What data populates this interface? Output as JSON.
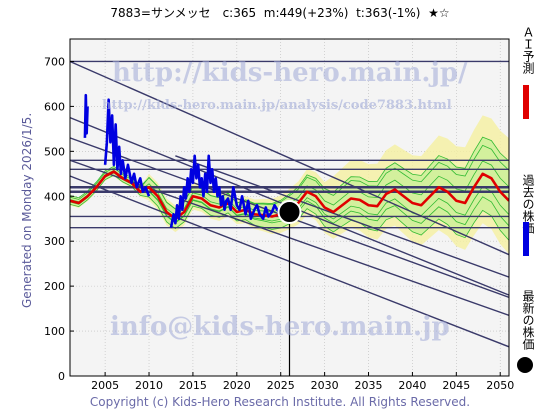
{
  "header": {
    "title": "7883=サンメッセ　c:365  m:449(+23%)  t:363(-1%)  ★☆"
  },
  "side_label": "Generated on Monday 2026/1/5.",
  "watermarks": {
    "url": "http://kids-hero.main.jp/",
    "analysis_url": "http://kids-hero.main.jp/analysis/code7883.html",
    "email": "info@kids-hero.main.jp"
  },
  "legend": {
    "ai": "ＡＩ予測",
    "past": "過去の株価",
    "latest": "最新の株価"
  },
  "footer": {
    "copyright": "Copyright (c) Kids-Hero Research Institute. All Rights Reserved."
  },
  "colors": {
    "ai_line": "#e00000",
    "past_line": "#0000e0",
    "band_fill": "#ccf09a",
    "band_line": "#33bb33",
    "yellow_fill": "#f5f0a0",
    "channel": "#3a3a6a",
    "grid": "#bbbbbb",
    "background": "#f4f4f4"
  },
  "chart_data": {
    "type": "line",
    "xlim": [
      2001,
      2051
    ],
    "ylim": [
      0,
      750
    ],
    "xticks": [
      2005,
      2010,
      2015,
      2020,
      2025,
      2030,
      2035,
      2040,
      2045,
      2050
    ],
    "yticks": [
      0,
      100,
      200,
      300,
      400,
      500,
      600,
      700
    ],
    "grid": true,
    "current": {
      "x": 2026.0,
      "y": 365
    },
    "horizontal_levels": [
      700,
      480,
      460,
      420,
      410,
      355,
      330
    ],
    "channels": [
      {
        "x": [
          2001,
          2051
        ],
        "y": [
          700,
          270
        ]
      },
      {
        "x": [
          2001,
          2051
        ],
        "y": [
          575,
          180
        ]
      },
      {
        "x": [
          2001,
          2051
        ],
        "y": [
          530,
          175
        ]
      },
      {
        "x": [
          2001,
          2051
        ],
        "y": [
          480,
          135
        ]
      },
      {
        "x": [
          2001,
          2051
        ],
        "y": [
          445,
          65
        ]
      },
      {
        "x": [
          2013,
          2051
        ],
        "y": [
          490,
          220
        ]
      }
    ],
    "series": [
      {
        "name": "過去の株価",
        "x": [
          2002.7,
          2002.8,
          2002.9,
          2003.0,
          2005.0,
          2005.2,
          2005.4,
          2005.6,
          2005.8,
          2006.0,
          2006.2,
          2006.4,
          2006.6,
          2006.8,
          2007.0,
          2007.3,
          2007.6,
          2008.0,
          2008.3,
          2008.6,
          2009.0,
          2009.3,
          2009.6,
          2010.0,
          2012.5,
          2012.8,
          2013.0,
          2013.2,
          2013.4,
          2013.6,
          2013.8,
          2014.0,
          2014.2,
          2014.4,
          2014.6,
          2014.8,
          2015.0,
          2015.2,
          2015.4,
          2015.6,
          2015.8,
          2016.0,
          2016.2,
          2016.4,
          2016.6,
          2016.8,
          2017.0,
          2017.2,
          2017.4,
          2017.6,
          2017.8,
          2018.0,
          2018.2,
          2018.4,
          2018.6,
          2018.8,
          2019.0,
          2019.3,
          2019.6,
          2020.0,
          2020.3,
          2020.6,
          2021.0,
          2021.3,
          2021.6,
          2022.0,
          2022.3,
          2022.6,
          2023.0,
          2023.3,
          2023.6,
          2024.0,
          2024.3,
          2024.6,
          2025.0,
          2025.3,
          2025.6,
          2026.0
        ],
        "y": [
          530,
          625,
          540,
          600,
          470,
          520,
          615,
          520,
          580,
          470,
          560,
          460,
          510,
          450,
          480,
          440,
          470,
          430,
          450,
          420,
          440,
          410,
          420,
          400,
          330,
          360,
          340,
          380,
          350,
          400,
          370,
          420,
          395,
          440,
          410,
          460,
          430,
          490,
          440,
          470,
          420,
          440,
          400,
          450,
          410,
          490,
          430,
          460,
          410,
          440,
          400,
          420,
          380,
          400,
          370,
          390,
          395,
          370,
          420,
          380,
          370,
          400,
          360,
          390,
          350,
          370,
          380,
          360,
          350,
          375,
          355,
          365,
          380,
          370,
          360,
          375,
          365,
          365
        ]
      },
      {
        "name": "ＡＩ予測",
        "x": [
          2001,
          2002,
          2003,
          2004,
          2005,
          2006,
          2007,
          2008,
          2009,
          2010,
          2011,
          2012,
          2013,
          2014,
          2015,
          2016,
          2017,
          2018,
          2019,
          2020,
          2021,
          2022,
          2023,
          2024,
          2025,
          2026,
          2027,
          2028,
          2029,
          2030,
          2031,
          2032,
          2033,
          2034,
          2035,
          2036,
          2037,
          2038,
          2039,
          2040,
          2041,
          2042,
          2043,
          2044,
          2045,
          2046,
          2047,
          2048,
          2049,
          2050,
          2051
        ],
        "y": [
          390,
          385,
          400,
          420,
          445,
          455,
          440,
          430,
          410,
          420,
          400,
          365,
          350,
          365,
          400,
          395,
          380,
          375,
          385,
          365,
          370,
          360,
          358,
          355,
          360,
          372,
          385,
          410,
          400,
          375,
          365,
          380,
          395,
          392,
          380,
          378,
          405,
          415,
          400,
          385,
          380,
          400,
          420,
          410,
          390,
          385,
          420,
          450,
          440,
          410,
          390
        ]
      }
    ]
  }
}
